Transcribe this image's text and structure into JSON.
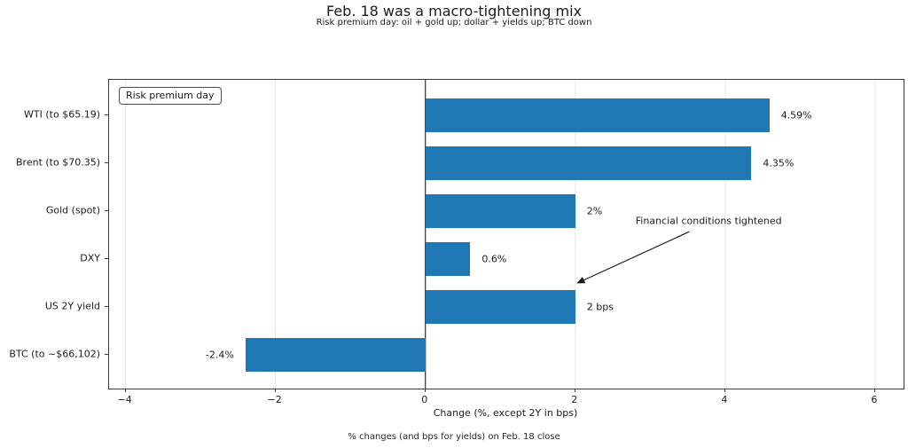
{
  "chart_data": {
    "type": "bar",
    "orientation": "horizontal",
    "title": "Feb. 18 was a macro-tightening mix",
    "subtitle": "Risk premium day: oil + gold up; dollar + yields up; BTC down",
    "categories": [
      "WTI (to $65.19)",
      "Brent (to $70.35)",
      "Gold (spot)",
      "DXY",
      "US 2Y yield",
      "BTC (to ~$66,102)"
    ],
    "values": [
      4.59,
      4.35,
      2,
      0.6,
      2,
      -2.4
    ],
    "value_labels": [
      "4.59%",
      "4.35%",
      "2%",
      "0.6%",
      "2 bps",
      "-2.4%"
    ],
    "bar_color": "#1f77b4",
    "xlabel": "Change (%, except 2Y in bps)",
    "footnote": "% changes (and bps for yields) on Feb. 18 close",
    "legend_label": "Risk premium day",
    "legend_position": "upper left",
    "grid": true,
    "grid_color": "#e7e7e7",
    "zero_line_color": "#333333",
    "xlim": [
      -4.22,
      6.38
    ],
    "xticks": [
      {
        "value": -4,
        "label": "−4"
      },
      {
        "value": -2,
        "label": "−2"
      },
      {
        "value": 0,
        "label": "0"
      },
      {
        "value": 2,
        "label": "2"
      },
      {
        "value": 4,
        "label": "4"
      },
      {
        "value": 6,
        "label": "6"
      }
    ],
    "annotation": {
      "text": "Financial conditions tightened",
      "text_xy": [
        3.78,
        2.2
      ],
      "arrow_from": [
        3.52,
        2.43
      ],
      "arrow_to": [
        2.03,
        3.5
      ]
    }
  }
}
